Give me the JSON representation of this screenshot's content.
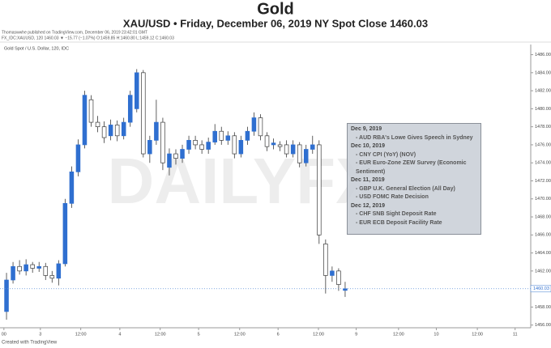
{
  "chart_data": {
    "type": "candlestick",
    "title": "Gold",
    "subtitle": "XAU/USD • Friday, December 06, 2019 NY Spot Close 1460.03",
    "publisher_line": "Thomaswwhe published on TradingView.com, December 06, 2019 23:42:01 GMT",
    "symbol_line": "FX_IDC:XAUUSD, 120  1460.03 ▼ −15.77 (−1.07%) O:1459.85 H:1460.80 L:1459.12 C:1460.03",
    "chart_label": "Gold Spot / U.S. Dollar, 120, IDC",
    "footer": "Created with TradingView",
    "watermark": "DAILYFX",
    "up_color": "#2f6fd0",
    "down_color": "#ffffff",
    "wick_color": "#3a3a3a",
    "x": [
      0,
      1,
      2,
      3,
      4,
      5,
      6,
      7,
      8,
      9,
      10,
      11,
      12,
      13,
      14,
      15,
      16,
      17,
      18,
      19,
      20,
      21,
      22,
      23,
      24,
      25,
      26,
      27,
      28,
      29,
      30,
      31,
      32,
      33,
      34,
      35,
      36,
      37,
      38,
      39,
      40,
      41,
      42,
      43,
      44,
      45,
      46,
      47,
      48,
      49,
      50,
      51,
      52
    ],
    "open": [
      1457.5,
      1461.0,
      1462.5,
      1462.0,
      1462.7,
      1462.3,
      1462.5,
      1461.5,
      1461.2,
      1462.8,
      1469.5,
      1473.0,
      1476.0,
      1481.0,
      1478.5,
      1478.0,
      1477.0,
      1478.2,
      1477.0,
      1478.5,
      1480.0,
      1484.0,
      1475.0,
      1476.5,
      1478.5,
      1473.5,
      1475.0,
      1474.5,
      1475.5,
      1476.5,
      1476.0,
      1475.5,
      1476.3,
      1477.5,
      1476.5,
      1477.0,
      1475.0,
      1476.5,
      1477.5,
      1479.0,
      1477.0,
      1476.0,
      1476.0,
      1476.0,
      1475.0,
      1476.0,
      1474.0,
      1475.5,
      1476.0,
      1465.0,
      1461.5,
      1462.0,
      1459.85
    ],
    "high": [
      1461.8,
      1463.0,
      1463.2,
      1463.3,
      1463.0,
      1463.0,
      1462.9,
      1462.0,
      1463.2,
      1470.0,
      1473.6,
      1476.6,
      1482.0,
      1481.5,
      1479.2,
      1478.6,
      1478.8,
      1478.7,
      1479.0,
      1482.0,
      1484.4,
      1484.3,
      1477.0,
      1481.0,
      1479.0,
      1475.6,
      1475.5,
      1476.0,
      1477.0,
      1477.0,
      1476.5,
      1476.8,
      1478.3,
      1478.0,
      1477.5,
      1477.4,
      1477.0,
      1478.0,
      1479.6,
      1479.4,
      1477.4,
      1476.7,
      1476.4,
      1476.5,
      1476.5,
      1476.3,
      1476.0,
      1477.0,
      1476.5,
      1465.5,
      1462.5,
      1462.3,
      1460.8
    ],
    "low": [
      1456.6,
      1460.6,
      1461.6,
      1461.5,
      1461.8,
      1461.9,
      1461.0,
      1460.7,
      1460.4,
      1462.5,
      1469.0,
      1472.5,
      1475.6,
      1478.0,
      1477.4,
      1476.2,
      1476.5,
      1476.4,
      1476.6,
      1478.0,
      1479.6,
      1474.6,
      1474.0,
      1476.0,
      1473.2,
      1472.6,
      1473.8,
      1474.0,
      1475.0,
      1475.5,
      1475.0,
      1475.0,
      1476.0,
      1476.0,
      1476.0,
      1474.5,
      1474.6,
      1476.0,
      1477.0,
      1476.5,
      1475.3,
      1475.5,
      1475.3,
      1474.6,
      1474.6,
      1473.5,
      1473.6,
      1475.0,
      1465.0,
      1459.5,
      1460.8,
      1459.8,
      1459.12
    ],
    "close": [
      1461.0,
      1462.5,
      1462.0,
      1462.7,
      1462.3,
      1462.5,
      1461.5,
      1461.2,
      1462.8,
      1469.5,
      1473.0,
      1476.0,
      1481.5,
      1478.5,
      1478.0,
      1476.8,
      1478.2,
      1477.0,
      1478.5,
      1481.5,
      1484.0,
      1475.0,
      1476.5,
      1478.5,
      1474.0,
      1475.0,
      1474.5,
      1475.5,
      1476.5,
      1476.0,
      1475.5,
      1476.3,
      1477.5,
      1476.5,
      1477.0,
      1475.0,
      1476.5,
      1477.5,
      1479.0,
      1477.0,
      1475.8,
      1476.2,
      1475.8,
      1475.0,
      1476.0,
      1474.0,
      1475.5,
      1476.0,
      1466.0,
      1461.5,
      1462.0,
      1460.5,
      1460.03
    ],
    "xlim": [
      -1,
      80.5
    ],
    "xticks": [
      {
        "value": -0.4,
        "label": "00"
      },
      {
        "value": 5.2,
        "label": "3"
      },
      {
        "value": 11.4,
        "label": "12:00"
      },
      {
        "value": 17.4,
        "label": "4"
      },
      {
        "value": 23.6,
        "label": "12:00"
      },
      {
        "value": 29.5,
        "label": "5"
      },
      {
        "value": 35.8,
        "label": "12:00"
      },
      {
        "value": 41.7,
        "label": "6"
      },
      {
        "value": 47.9,
        "label": "12:00"
      },
      {
        "value": 53.7,
        "label": "9"
      },
      {
        "value": 60.2,
        "label": "12:00"
      },
      {
        "value": 66,
        "label": "10"
      },
      {
        "value": 72.3,
        "label": "12:00"
      },
      {
        "value": 78.1,
        "label": "11"
      }
    ],
    "ylim": [
      1455.7,
      1486.5
    ],
    "yticks": [
      {
        "value": 1456,
        "label": "1456.00"
      },
      {
        "value": 1458,
        "label": "1458.00"
      },
      {
        "value": 1460,
        "label": "1460.00"
      },
      {
        "value": 1462,
        "label": "1462.00"
      },
      {
        "value": 1464,
        "label": "1464.00"
      },
      {
        "value": 1466,
        "label": "1466.00"
      },
      {
        "value": 1468,
        "label": "1468.00"
      },
      {
        "value": 1470,
        "label": "1470.00"
      },
      {
        "value": 1472,
        "label": "1472.00"
      },
      {
        "value": 1474,
        "label": "1474.00"
      },
      {
        "value": 1476,
        "label": "1476.00"
      },
      {
        "value": 1478,
        "label": "1478.00"
      },
      {
        "value": 1480,
        "label": "1480.00"
      },
      {
        "value": 1482,
        "label": "1482.00"
      },
      {
        "value": 1484,
        "label": "1484.00"
      },
      {
        "value": 1486,
        "label": "1486.00"
      }
    ],
    "last_price_label": "1460.03",
    "events": [
      {
        "date": "Dec 9, 2019",
        "items": [
          "- AUD RBA's Lowe Gives Speech in Sydney"
        ]
      },
      {
        "date": "Dec 10, 2019",
        "items": [
          "- CNY CPI (YoY) (NOV)",
          "- EUR Euro-Zone ZEW Survey (Economic Sentiment)"
        ]
      },
      {
        "date": "Dec 11, 2019",
        "items": [
          "- GBP U.K. General Election (All Day)",
          "- USD FOMC Rate Decision"
        ]
      },
      {
        "date": "Dec 12, 2019",
        "items": [
          "- CHF SNB Sight Deposit Rate",
          "- EUR ECB Deposit Facility Rate"
        ]
      }
    ]
  }
}
